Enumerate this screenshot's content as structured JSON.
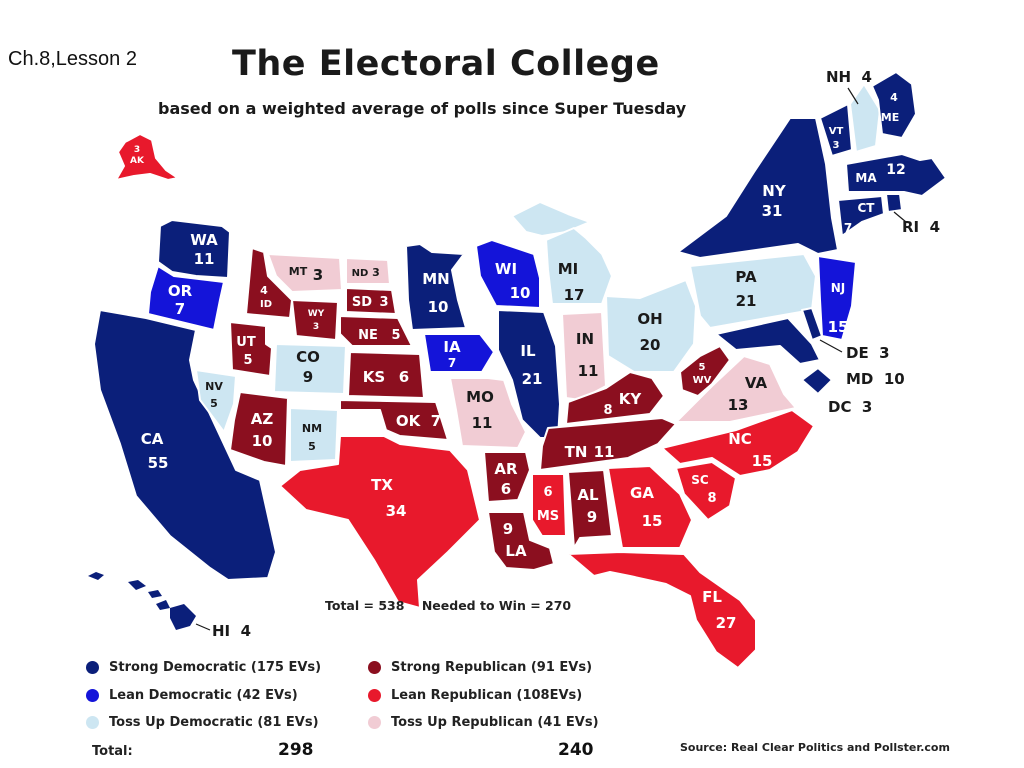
{
  "slide_label": "Ch.8,Lesson 2",
  "title": "The Electoral College",
  "subtitle": "based on a weighted average of polls since Super Tuesday",
  "colors": {
    "strong_dem": "#0b1f7a",
    "lean_dem": "#1414d9",
    "tossup_dem": "#cde6f2",
    "strong_rep": "#8b0f1f",
    "lean_rep": "#e8192c",
    "tossup_rep": "#f1ccd4"
  },
  "states": {
    "WA": {
      "abbr": "WA",
      "ev": "11"
    },
    "OR": {
      "abbr": "OR",
      "ev": "7"
    },
    "CA": {
      "abbr": "CA",
      "ev": "55"
    },
    "NV": {
      "abbr": "NV",
      "ev": "5"
    },
    "ID": {
      "abbr": "ID",
      "ev": "4"
    },
    "MT": {
      "abbr": "MT",
      "ev": "3"
    },
    "WY": {
      "abbr": "WY",
      "ev": "3"
    },
    "UT": {
      "abbr": "UT",
      "ev": "5"
    },
    "CO": {
      "abbr": "CO",
      "ev": "9"
    },
    "AZ": {
      "abbr": "AZ",
      "ev": "10"
    },
    "NM": {
      "abbr": "NM",
      "ev": "5"
    },
    "ND": {
      "abbr": "ND",
      "ev": "3"
    },
    "SD": {
      "abbr": "SD",
      "ev": "3"
    },
    "NE": {
      "abbr": "NE",
      "ev": "5"
    },
    "KS": {
      "abbr": "KS",
      "ev": "6"
    },
    "OK": {
      "abbr": "OK",
      "ev": "7"
    },
    "TX": {
      "abbr": "TX",
      "ev": "34"
    },
    "MN": {
      "abbr": "MN",
      "ev": "10"
    },
    "IA": {
      "abbr": "IA",
      "ev": "7"
    },
    "MO": {
      "abbr": "MO",
      "ev": "11"
    },
    "AR": {
      "abbr": "AR",
      "ev": "6"
    },
    "LA": {
      "abbr": "LA",
      "ev": "9"
    },
    "WI": {
      "abbr": "WI",
      "ev": "10"
    },
    "IL": {
      "abbr": "IL",
      "ev": "21"
    },
    "MI": {
      "abbr": "MI",
      "ev": "17"
    },
    "IN": {
      "abbr": "IN",
      "ev": "11"
    },
    "OH": {
      "abbr": "OH",
      "ev": "20"
    },
    "KY": {
      "abbr": "KY",
      "ev": "8"
    },
    "TN": {
      "abbr": "TN",
      "ev": "11"
    },
    "MS": {
      "abbr": "MS",
      "ev": "6"
    },
    "AL": {
      "abbr": "AL",
      "ev": "9"
    },
    "GA": {
      "abbr": "GA",
      "ev": "15"
    },
    "FL": {
      "abbr": "FL",
      "ev": "27"
    },
    "SC": {
      "abbr": "SC",
      "ev": "8"
    },
    "NC": {
      "abbr": "NC",
      "ev": "15"
    },
    "VA": {
      "abbr": "VA",
      "ev": "13"
    },
    "WV": {
      "abbr": "WV",
      "ev": "5"
    },
    "PA": {
      "abbr": "PA",
      "ev": "21"
    },
    "NY": {
      "abbr": "NY",
      "ev": "31"
    },
    "NJ": {
      "abbr": "NJ",
      "ev": "15"
    },
    "VT": {
      "abbr": "VT",
      "ev": "3"
    },
    "ME": {
      "abbr": "ME",
      "ev": "4"
    },
    "MA": {
      "abbr": "MA",
      "ev": "12"
    },
    "CT": {
      "abbr": "CT",
      "ev": "7"
    },
    "AK": {
      "abbr": "AK",
      "ev": "3"
    },
    "NH": {
      "label": "NH  4"
    },
    "RI": {
      "label": "RI  4"
    },
    "DE": {
      "label": "DE  3"
    },
    "MD": {
      "label": "MD  10"
    },
    "DC": {
      "label": "DC  3"
    },
    "HI": {
      "label": "HI  4"
    }
  },
  "totals_line": "Total = 538    Needed to Win = 270",
  "legend": [
    {
      "key": "strong_dem",
      "label": "Strong Democratic (175 EVs)"
    },
    {
      "key": "lean_dem",
      "label": "Lean Democratic (42 EVs)"
    },
    {
      "key": "tossup_dem",
      "label": "Toss Up Democratic (81 EVs)"
    },
    {
      "key": "strong_rep",
      "label": "Strong Republican (91  EVs)"
    },
    {
      "key": "lean_rep",
      "label": "Lean Republican (108EVs)"
    },
    {
      "key": "tossup_rep",
      "label": "Toss Up Republican (41 EVs)"
    }
  ],
  "total_label": "Total:",
  "dem_total": "298",
  "rep_total": "240",
  "source": "Source: Real Clear Politics and Pollster.com"
}
